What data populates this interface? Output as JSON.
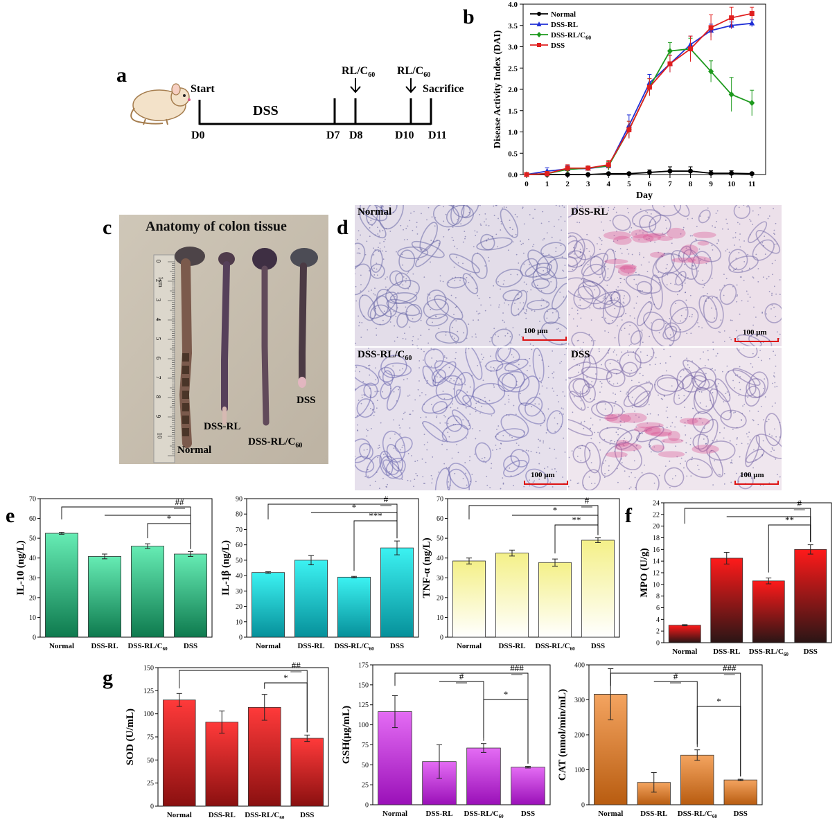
{
  "panels": {
    "a": "a",
    "b": "b",
    "c": "c",
    "d": "d",
    "e": "e",
    "f": "f",
    "g": "g"
  },
  "timeline": {
    "start": "Start",
    "dss": "DSS",
    "sacrifice": "Sacrifice",
    "treat": "RL/C",
    "treat_sub": "60",
    "days": [
      "D0",
      "D7",
      "D8",
      "D10",
      "D11"
    ]
  },
  "photo": {
    "title": "Anatomy of colon tissue",
    "labels": [
      "Normal",
      "DSS-RL",
      "DSS-RL/C",
      "DSS"
    ],
    "sub": "60",
    "ruler_unit": "1cm",
    "ruler_numbers": [
      "0",
      "2",
      "3",
      "4",
      "5",
      "6",
      "7",
      "8",
      "9",
      "10"
    ]
  },
  "histology": {
    "labels": [
      "Normal",
      "DSS-RL",
      "DSS-RL/C",
      "DSS"
    ],
    "sub": "60",
    "scale": "100 μm"
  },
  "chart_data": [
    {
      "id": "b",
      "type": "line",
      "xlabel": "Day",
      "ylabel": "Disease Activity Index (DAI)",
      "x": [
        0,
        1,
        2,
        3,
        4,
        5,
        6,
        7,
        8,
        9,
        10,
        11
      ],
      "ylim": [
        0,
        4.0
      ],
      "yticks": [
        "0.0",
        "0.5",
        "1.0",
        "1.5",
        "2.0",
        "2.5",
        "3.0",
        "3.5",
        "4.0"
      ],
      "series": [
        {
          "name": "Normal",
          "color": "#000000",
          "marker": "circle",
          "values": [
            0,
            0,
            0,
            0,
            0.02,
            0.02,
            0.05,
            0.08,
            0.08,
            0.03,
            0.03,
            0.02
          ],
          "err": [
            0,
            0,
            0,
            0,
            0.02,
            0.03,
            0.06,
            0.1,
            0.1,
            0.06,
            0.06,
            0.03
          ]
        },
        {
          "name": "DSS-RL",
          "color": "#1f2fd6",
          "marker": "triangle",
          "values": [
            0,
            0.08,
            0.13,
            0.14,
            0.2,
            1.15,
            2.15,
            2.6,
            3.05,
            3.38,
            3.5,
            3.55
          ],
          "err": [
            0,
            0.08,
            0.08,
            0.05,
            0.1,
            0.25,
            0.2,
            0.2,
            0.2,
            0.15,
            0.08,
            0.08
          ]
        },
        {
          "name": "DSS-RL/C",
          "sub": "60",
          "color": "#1e9a1e",
          "marker": "diamond",
          "values": [
            0,
            0.02,
            0.12,
            0.15,
            0.2,
            1.05,
            2.05,
            2.9,
            2.95,
            2.42,
            1.88,
            1.68
          ],
          "err": [
            0,
            0.05,
            0.08,
            0.05,
            0.1,
            0.2,
            0.2,
            0.2,
            0.25,
            0.25,
            0.4,
            0.3
          ]
        },
        {
          "name": "DSS",
          "color": "#e01f1f",
          "marker": "square",
          "values": [
            0,
            0.02,
            0.15,
            0.15,
            0.23,
            1.05,
            2.05,
            2.6,
            2.95,
            3.45,
            3.68,
            3.78
          ],
          "err": [
            0,
            0.05,
            0.08,
            0.05,
            0.1,
            0.2,
            0.2,
            0.2,
            0.3,
            0.3,
            0.25,
            0.15
          ]
        }
      ]
    },
    {
      "id": "e1",
      "type": "bar",
      "ylabel": "IL-10  (ng/L)",
      "ylim": [
        0,
        70
      ],
      "yticks": [
        "0",
        "10",
        "20",
        "30",
        "40",
        "50",
        "60",
        "70"
      ],
      "categories": [
        "Normal",
        "DSS-RL",
        "DSS-RL/C",
        "DSS"
      ],
      "sub_index": 2,
      "sub": "60",
      "values": [
        52.5,
        40.8,
        46,
        42
      ],
      "err": [
        0.5,
        1.2,
        1.2,
        1.2
      ],
      "gradient": [
        "#66ecb4",
        "#0e7a4e"
      ],
      "sig": [
        {
          "from": 0,
          "to": 3,
          "label": "##"
        },
        {
          "from": 1,
          "to": 3,
          "label": ""
        },
        {
          "from": 2,
          "to": 3,
          "label": "*"
        }
      ]
    },
    {
      "id": "e2",
      "type": "bar",
      "ylabel": "IL-1β  (ng/L)",
      "ylim": [
        0,
        90
      ],
      "yticks": [
        "0",
        "10",
        "20",
        "30",
        "40",
        "50",
        "60",
        "70",
        "80",
        "90"
      ],
      "categories": [
        "Normal",
        "DSS-RL",
        "DSS-RL/C",
        "DSS"
      ],
      "sub_index": 2,
      "sub": "60",
      "values": [
        42,
        50,
        39,
        58
      ],
      "err": [
        0.5,
        3,
        0.5,
        4.5
      ],
      "gradient": [
        "#3cf2f2",
        "#06909a"
      ],
      "sig": [
        {
          "from": 0,
          "to": 3,
          "label": "#"
        },
        {
          "from": 1,
          "to": 3,
          "label": "*"
        },
        {
          "from": 2,
          "to": 3,
          "label": "***"
        }
      ]
    },
    {
      "id": "e3",
      "type": "bar",
      "ylabel": "TNF-α  (ng/L)",
      "ylim": [
        0,
        70
      ],
      "yticks": [
        "0",
        "10",
        "20",
        "30",
        "40",
        "50",
        "60",
        "70"
      ],
      "categories": [
        "Normal",
        "DSS-RL",
        "DSS-RL/C",
        "DSS"
      ],
      "sub_index": 2,
      "sub": "60",
      "values": [
        38.5,
        42.5,
        37.7,
        49
      ],
      "err": [
        1.5,
        1.5,
        1.8,
        1.2
      ],
      "gradient": [
        "#f4f088",
        "#ffffff"
      ],
      "sig": [
        {
          "from": 0,
          "to": 3,
          "label": "#"
        },
        {
          "from": 1,
          "to": 3,
          "label": "*"
        },
        {
          "from": 2,
          "to": 3,
          "label": "**"
        }
      ]
    },
    {
      "id": "f",
      "type": "bar",
      "ylabel": "MPO (U/g)",
      "ylim": [
        0,
        24
      ],
      "yticks": [
        "0",
        "2",
        "4",
        "6",
        "8",
        "10",
        "12",
        "14",
        "16",
        "18",
        "20",
        "22",
        "24"
      ],
      "categories": [
        "Normal",
        "DSS-RL",
        "DSS-RL/C",
        "DSS"
      ],
      "sub_index": 2,
      "sub": "60",
      "values": [
        3,
        14.5,
        10.6,
        16
      ],
      "err": [
        0.1,
        1,
        0.5,
        0.8
      ],
      "gradient": [
        "#ff1a1a",
        "#2a1515"
      ],
      "sig": [
        {
          "from": 0,
          "to": 3,
          "label": "#"
        },
        {
          "from": 1,
          "to": 3,
          "label": ""
        },
        {
          "from": 2,
          "to": 3,
          "label": "**"
        }
      ]
    },
    {
      "id": "g1",
      "type": "bar",
      "ylabel": "SOD (U/mL)",
      "ylim": [
        0,
        150
      ],
      "yticks": [
        "0",
        "25",
        "50",
        "75",
        "100",
        "125",
        "150"
      ],
      "categories": [
        "Normal",
        "DSS-RL",
        "DSS-RL/C",
        "DSS"
      ],
      "sub_index": 2,
      "sub": "60",
      "values": [
        115,
        91,
        107,
        73.5
      ],
      "err": [
        7,
        12,
        14,
        3.5
      ],
      "gradient": [
        "#ff3a3a",
        "#8a1010"
      ],
      "sig": [
        {
          "from": 0,
          "to": 3,
          "label": "##"
        },
        {
          "from": 2,
          "to": 3,
          "label": "*"
        }
      ]
    },
    {
      "id": "g2",
      "type": "bar",
      "ylabel": "GSH(μg/mL)",
      "ylim": [
        0,
        175
      ],
      "yticks": [
        "0",
        "25",
        "50",
        "75",
        "100",
        "125",
        "150",
        "175"
      ],
      "categories": [
        "Normal",
        "DSS-RL",
        "DSS-RL/C",
        "DSS"
      ],
      "sub_index": 2,
      "sub": "60",
      "values": [
        116.5,
        54,
        71,
        47
      ],
      "err": [
        20,
        21,
        5.5,
        1
      ],
      "gradient": [
        "#e46cf4",
        "#9a10b8"
      ],
      "sig": [
        {
          "from": 0,
          "to": 3,
          "label": "###"
        },
        {
          "from": 1,
          "to": 2,
          "label": "#"
        },
        {
          "from": 2,
          "to": 3,
          "label": "*"
        }
      ]
    },
    {
      "id": "g3",
      "type": "bar",
      "ylabel": "CAT (nmol/min/mL)",
      "ylim": [
        0,
        400
      ],
      "yticks": [
        "0",
        "100",
        "200",
        "300",
        "400"
      ],
      "categories": [
        "Normal",
        "DSS-RL",
        "DSS-RL/C",
        "DSS"
      ],
      "sub_index": 2,
      "sub": "60",
      "values": [
        316,
        64,
        142,
        71
      ],
      "err": [
        73,
        28,
        15,
        2
      ],
      "gradient": [
        "#f4a460",
        "#b85c10"
      ],
      "sig": [
        {
          "from": 0,
          "to": 3,
          "label": "###"
        },
        {
          "from": 1,
          "to": 2,
          "label": "#"
        },
        {
          "from": 2,
          "to": 3,
          "label": "*"
        }
      ]
    }
  ]
}
